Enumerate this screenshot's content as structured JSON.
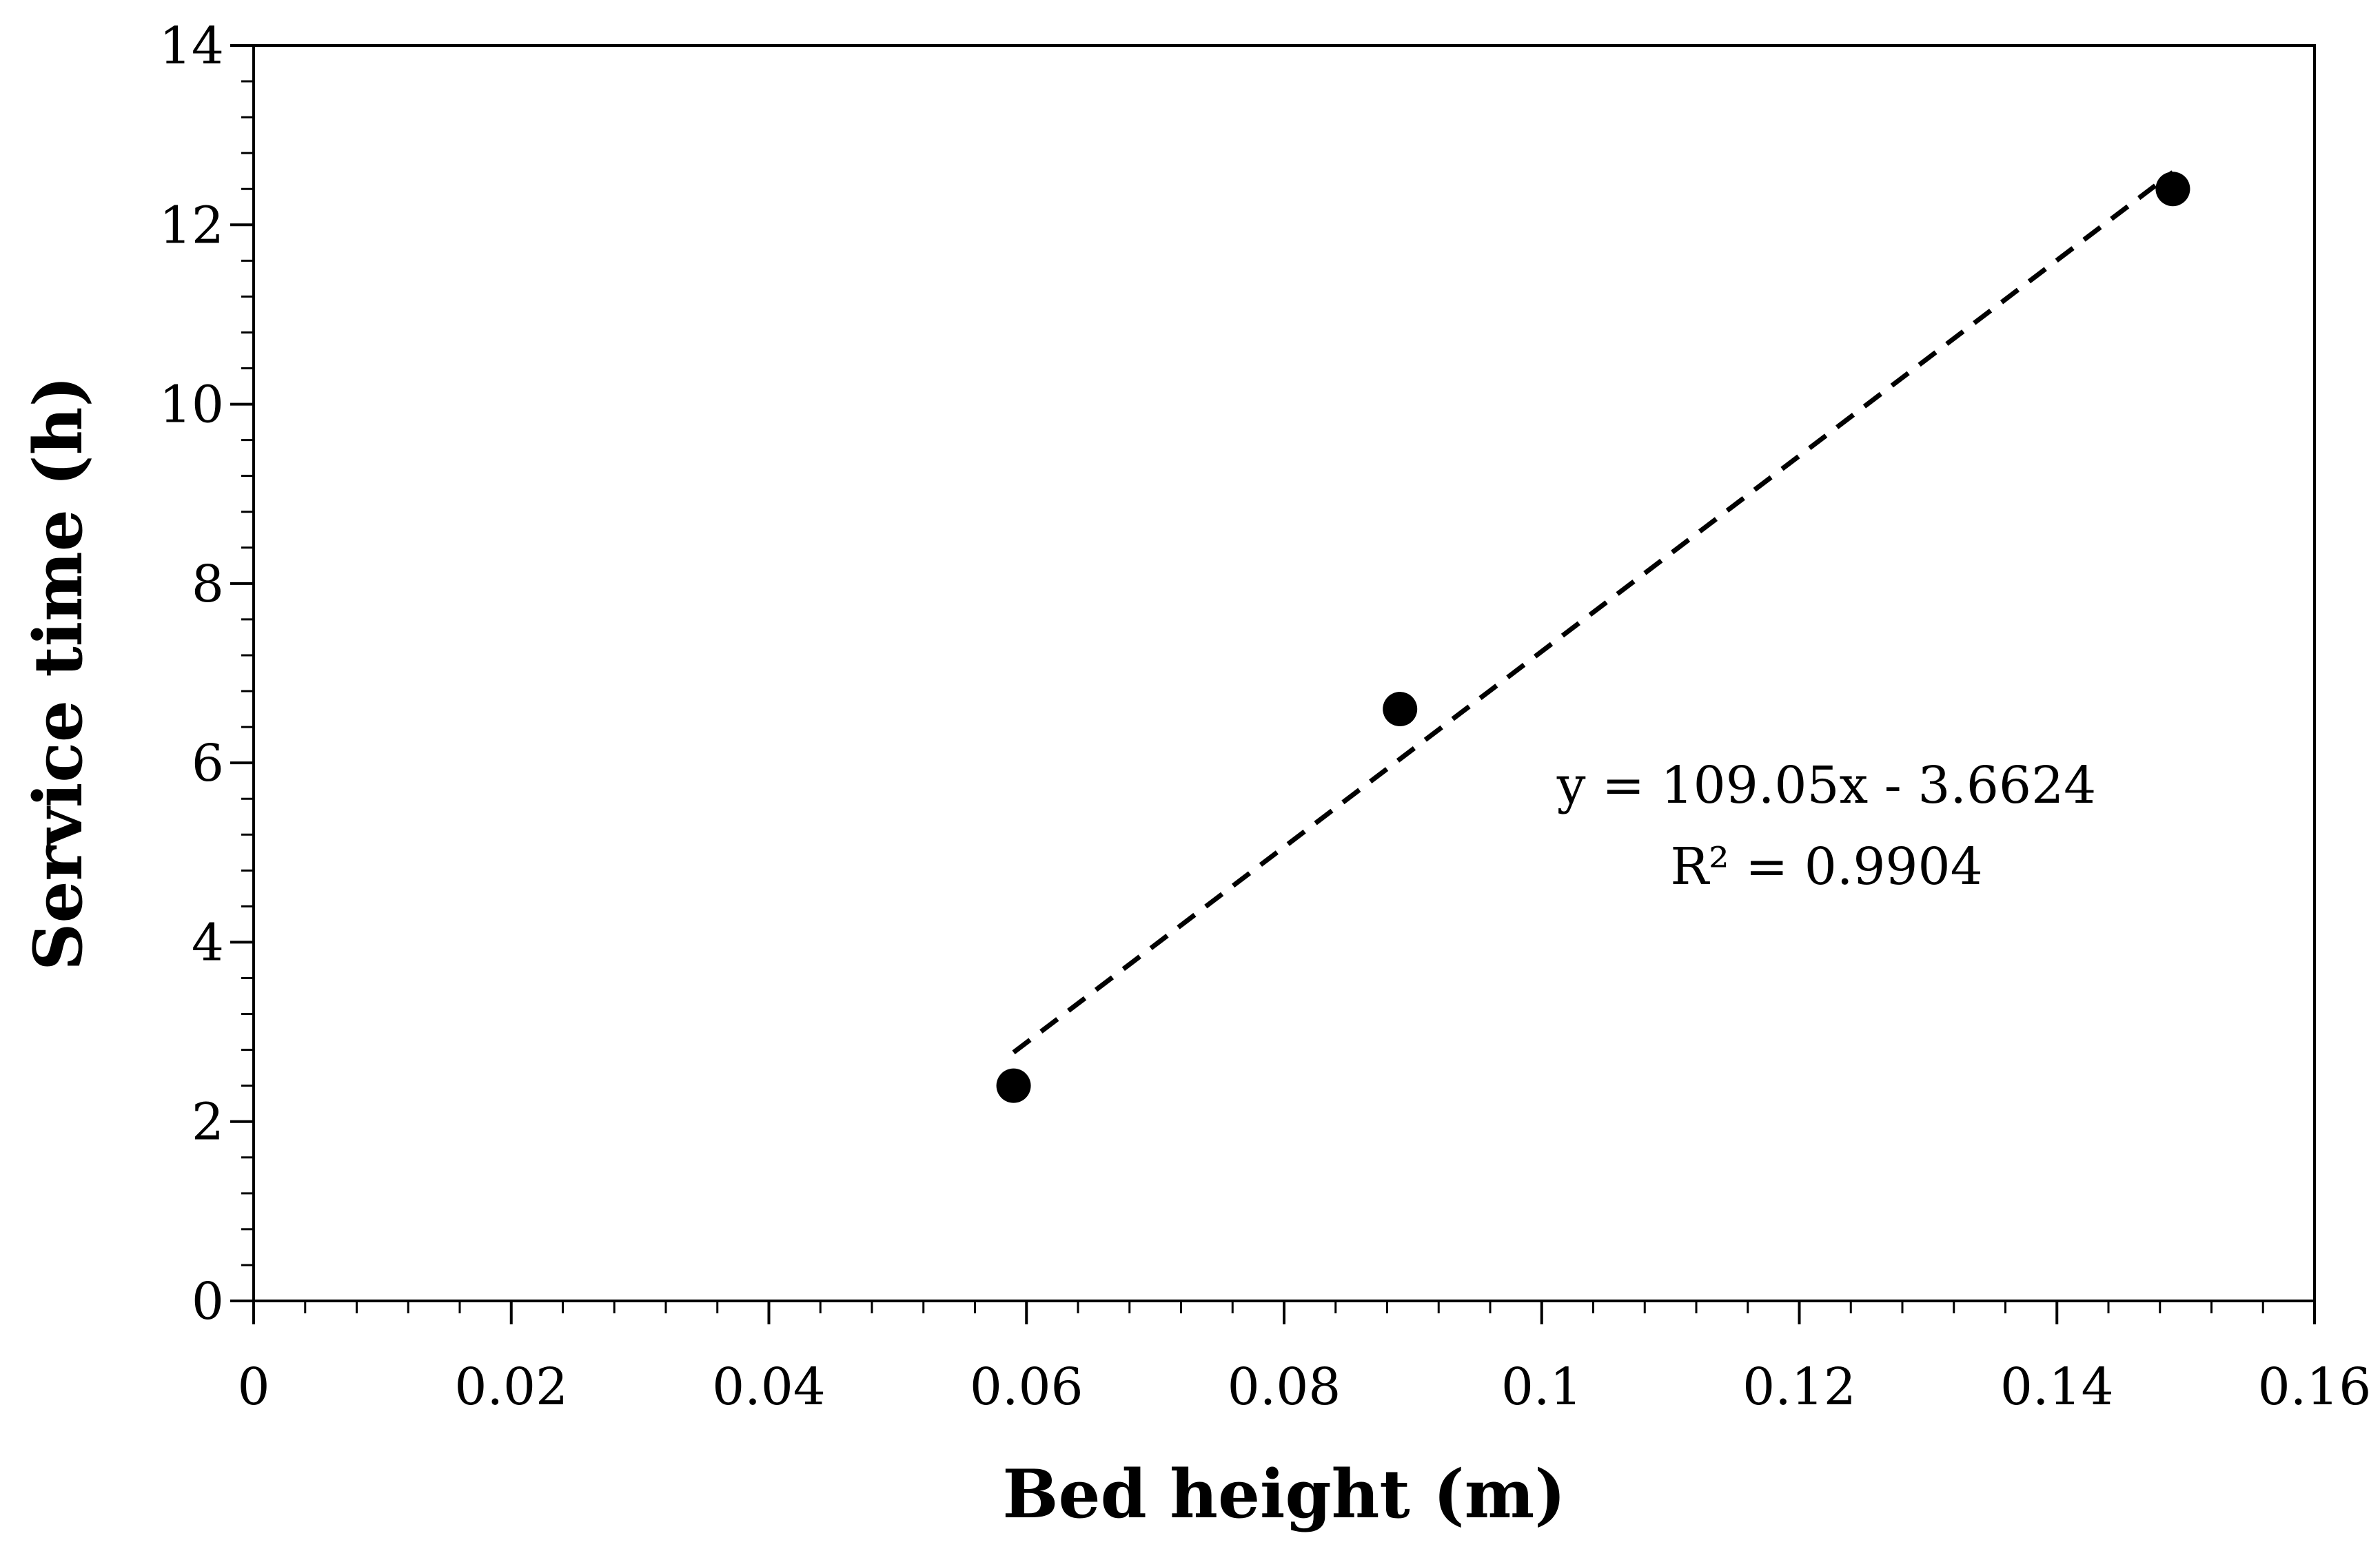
{
  "chart_data": {
    "type": "scatter",
    "title": "",
    "xlabel": "Bed height (m)",
    "ylabel": "Service time (h)",
    "xlim": [
      0,
      0.16
    ],
    "ylim": [
      0,
      14
    ],
    "x_ticks": [
      0,
      0.02,
      0.04,
      0.06,
      0.08,
      0.1,
      0.12,
      0.14,
      0.16
    ],
    "x_tick_labels": [
      "0",
      "0.02",
      "0.04",
      "0.06",
      "0.08",
      "0.1",
      "0.12",
      "0.14",
      "0.16"
    ],
    "x_minor_step": 0.004,
    "y_ticks": [
      0,
      2,
      4,
      6,
      8,
      10,
      12,
      14
    ],
    "y_tick_labels": [
      "0",
      "2",
      "4",
      "6",
      "8",
      "10",
      "12",
      "14"
    ],
    "y_minor_step": 0.4,
    "grid": false,
    "series": [
      {
        "name": "Service time",
        "x": [
          0.059,
          0.089,
          0.149
        ],
        "y": [
          2.4,
          6.6,
          12.4
        ],
        "marker": "circle",
        "color": "#000000"
      }
    ],
    "trendline": {
      "type": "linear",
      "slope": 109.05,
      "intercept": -3.6624,
      "x_range": [
        0.059,
        0.149
      ],
      "style": "dashed",
      "color": "#000000"
    },
    "annotations": [
      {
        "text": "y = 109.05x - 3.6624"
      },
      {
        "text": "R² = 0.9904"
      }
    ]
  }
}
